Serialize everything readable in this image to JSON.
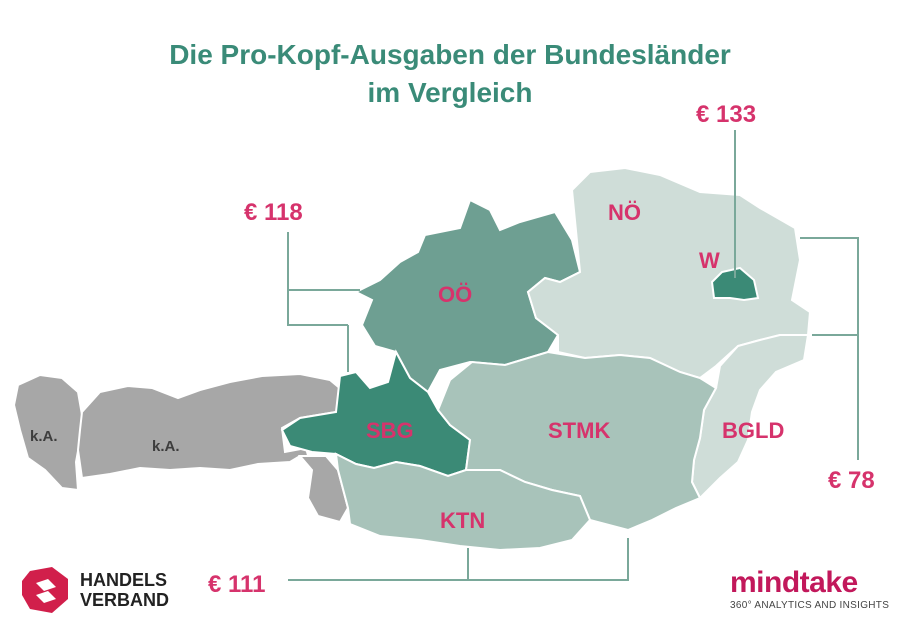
{
  "title": {
    "line1": "Die Pro-Kopf-Ausgaben der Bundesländer",
    "line2": "im Vergleich"
  },
  "regions": {
    "vorarlberg": "k.A.",
    "tirol": "k.A.",
    "ooe": "OÖ",
    "sbg": "SBG",
    "noe": "NÖ",
    "wien": "W",
    "stmk": "STMK",
    "ktn": "KTN",
    "bgld": "BGLD"
  },
  "values": {
    "wien": "€ 133",
    "ooe_sbg": "€ 118",
    "noe_bgld": "€ 78",
    "stmk_ktn": "€ 111"
  },
  "colors": {
    "title": "#3a8b78",
    "value_label": "#d6336c",
    "region_dark": "#3b8a76",
    "region_mid": "#6e9f92",
    "region_light_mid": "#a8c3ba",
    "region_light": "#cfddd8",
    "region_no_data": "#a7a7a7"
  },
  "logos": {
    "left_line1": "HANDELS",
    "left_line2": "VERBAND",
    "right_word": "mindtake",
    "right_tagline": "360° ANALYTICS AND INSIGHTS"
  }
}
